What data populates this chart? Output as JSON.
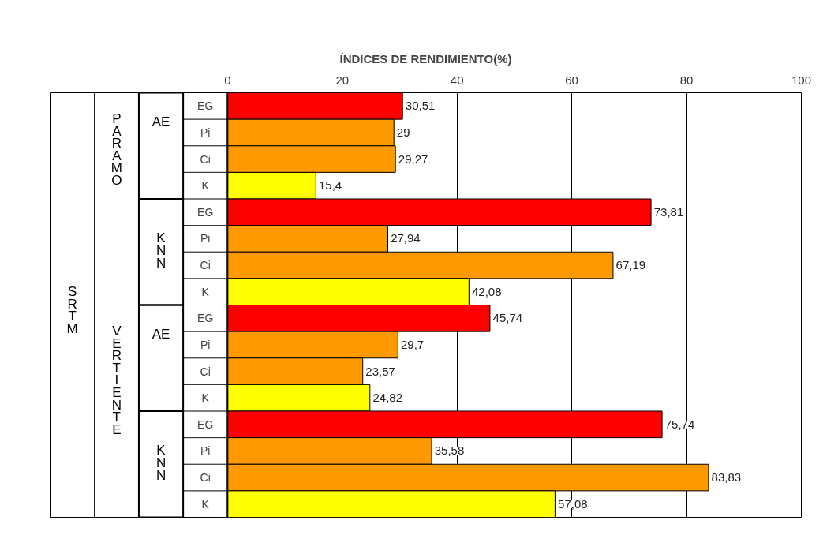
{
  "chart_data": {
    "type": "bar",
    "orientation": "horizontal",
    "title": "ÍNDICES DE RENDIMIENTO(%)",
    "categories": [
      "EG",
      "Pi",
      "Ci",
      "K",
      "EG",
      "Pi",
      "Ci",
      "K",
      "EG",
      "Pi",
      "Ci",
      "K",
      "EG",
      "Pi",
      "Ci",
      "K"
    ],
    "values": [
      30.51,
      29,
      29.27,
      15.4,
      73.81,
      27.94,
      67.19,
      42.08,
      45.74,
      29.7,
      23.57,
      24.82,
      75.74,
      35.58,
      83.83,
      57.08
    ],
    "value_labels": [
      "30,51",
      "29",
      "29,27",
      "15,4",
      "73,81",
      "27,94",
      "67,19",
      "42,08",
      "45,74",
      "29,7",
      "23,57",
      "24,82",
      "75,74",
      "35,58",
      "83,83",
      "57,08"
    ],
    "colors": [
      "#ff0000",
      "#ff9900",
      "#ff9900",
      "#ffff00",
      "#ff0000",
      "#ff9900",
      "#ff9900",
      "#ffff00",
      "#ff0000",
      "#ff9900",
      "#ff9900",
      "#ffff00",
      "#ff0000",
      "#ff9900",
      "#ff9900",
      "#ffff00"
    ],
    "xlim": [
      0,
      100
    ],
    "xticks": [
      0,
      20,
      40,
      60,
      80,
      100
    ],
    "grid": "x",
    "annotations": [
      "SRTM",
      "PARAMO",
      "VERTIENTE",
      "AE",
      "KNN",
      "AE",
      "KNN"
    ]
  }
}
